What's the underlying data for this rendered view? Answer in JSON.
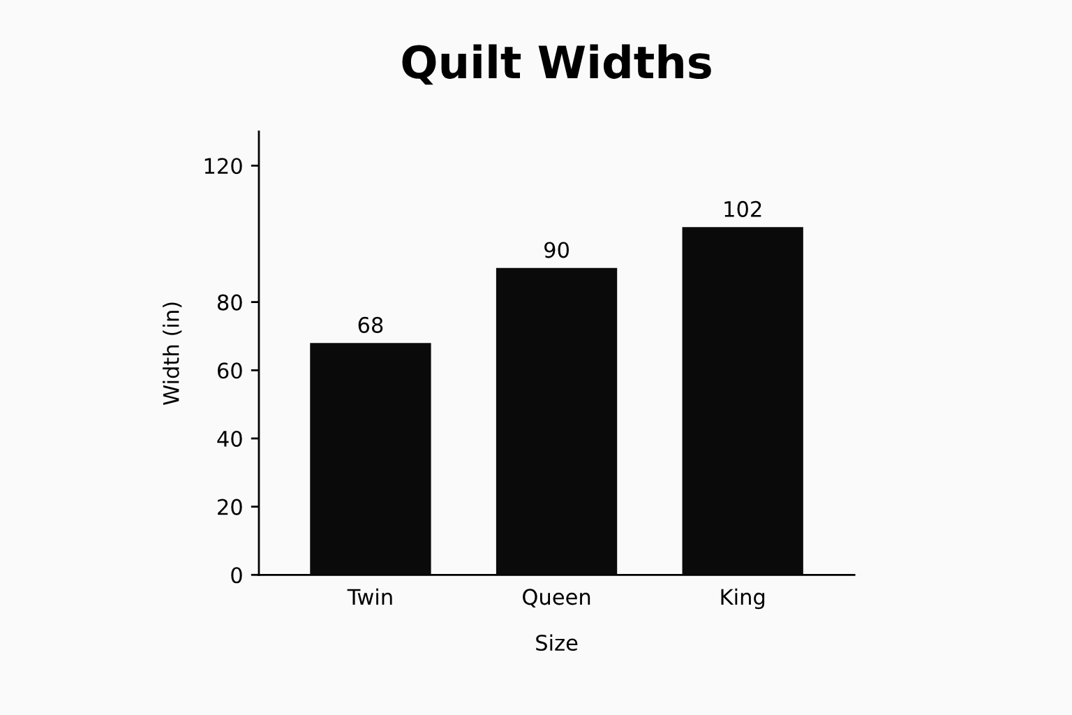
{
  "chart_data": {
    "type": "bar",
    "title": "Quilt Widths",
    "xlabel": "Size",
    "ylabel": "Width (in)",
    "categories": [
      "Twin",
      "Queen",
      "King"
    ],
    "values": [
      68,
      90,
      102
    ],
    "color": "#0a0a0a",
    "data_labels": true,
    "ylim": [
      0,
      130
    ],
    "yticks": [
      0,
      20,
      40,
      60,
      80,
      120
    ],
    "grid": false,
    "legend": false
  }
}
